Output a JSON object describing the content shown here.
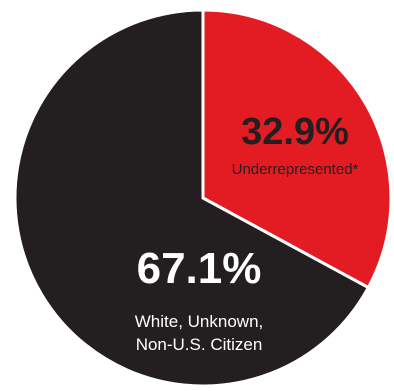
{
  "chart_data": {
    "type": "pie",
    "title": "",
    "slices": [
      {
        "label": "Underrepresented*",
        "label_lines": [
          "Underrepresented*"
        ],
        "value": 32.9,
        "display": "32.9%",
        "color": "#e31c23",
        "label_color": "#231f20"
      },
      {
        "label": "White, Unknown, Non-U.S. Citizen",
        "label_lines": [
          "White, Unknown,",
          "Non-U.S. Citizen"
        ],
        "value": 67.1,
        "display": "67.1%",
        "color": "#231f20",
        "label_color": "#ffffff"
      }
    ],
    "start_angle_deg": 0,
    "direction": "clockwise",
    "slice_border_color": "#ffffff"
  }
}
